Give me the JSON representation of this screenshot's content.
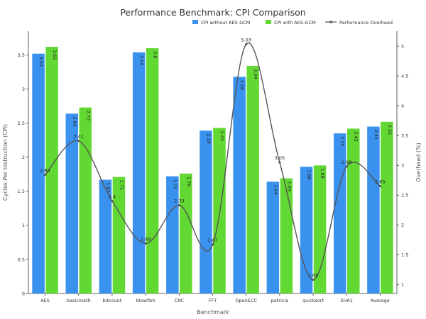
{
  "chart_data": {
    "type": "bar",
    "title": "Performance Benchmark: CPI Comparison",
    "xlabel": "Benchmark",
    "ylabel": "Cycles Per Instruction (CPI)",
    "y2label": "Overhead (%)",
    "ylim": [
      0,
      3.85
    ],
    "y2lim": [
      0.85,
      5.25
    ],
    "yticks": [
      "0",
      "0.5",
      "1",
      "1.5",
      "2",
      "2.5",
      "3",
      "3.5"
    ],
    "y2ticks": [
      "1",
      "1.5",
      "2",
      "2.5",
      "3",
      "3.5",
      "4",
      "4.5",
      "5"
    ],
    "legend_position": "top-right",
    "grid": false,
    "categories": [
      "AES",
      "basicmath",
      "bitcount",
      "blowfish",
      "CRC",
      "FFT",
      "OpenECC",
      "patricia",
      "quicksort",
      "SHA1",
      "Average"
    ],
    "series": [
      {
        "name": "CPI without AES-GCM",
        "type": "bar",
        "color": "#3a92ef",
        "values": [
          3.52,
          2.64,
          1.67,
          3.54,
          1.72,
          2.39,
          3.18,
          1.64,
          1.86,
          2.35,
          2.45
        ],
        "labels": [
          "3.52",
          "2.64",
          "1.67",
          "3.54",
          "1.72",
          "2.39",
          "3.18",
          "1.64",
          "1.86",
          "2.35",
          "2.45"
        ]
      },
      {
        "name": "CPI with AES-GCM",
        "type": "bar",
        "color": "#62d832",
        "values": [
          3.62,
          2.73,
          1.71,
          3.6,
          1.76,
          2.43,
          3.34,
          1.69,
          1.88,
          2.42,
          2.52
        ],
        "labels": [
          "3.62",
          "2.73",
          "1.71",
          "3.6",
          "1.76",
          "2.43",
          "3.34",
          "1.69",
          "1.88",
          "2.42",
          "2.52"
        ]
      },
      {
        "name": "Performance Overhead",
        "type": "line",
        "axis": "right",
        "color": "#555555",
        "values": [
          2.84,
          3.41,
          2.4,
          1.69,
          2.33,
          1.67,
          5.03,
          3.05,
          1.08,
          2.98,
          2.65
        ],
        "labels": [
          "2.84",
          "3.41",
          "2.4",
          "1.69",
          "2.33",
          "1.67",
          "5.03",
          "3.05",
          "1.08",
          "2.98",
          "2.65"
        ]
      }
    ]
  }
}
